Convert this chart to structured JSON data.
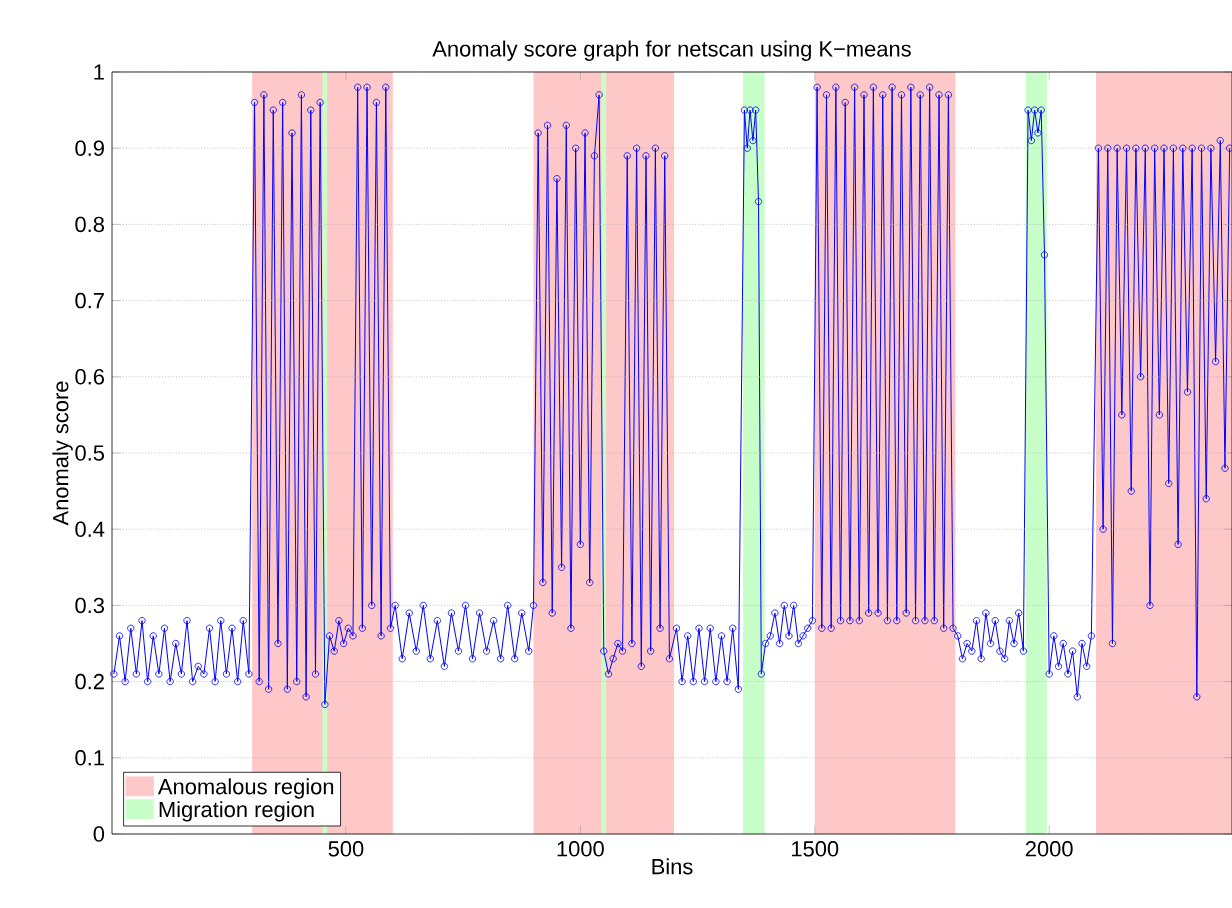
{
  "chart_data": {
    "type": "line",
    "title": "Anomaly score graph for netscan using K−means",
    "xlabel": "Bins",
    "ylabel": "Anomaly score",
    "xlim": [
      1,
      2390
    ],
    "xticks": [
      500,
      1000,
      1500,
      2000
    ],
    "ylim": [
      0,
      1
    ],
    "yticks": [
      0,
      0.1,
      0.2,
      0.3,
      0.4,
      0.5,
      0.6,
      0.7,
      0.8,
      0.9,
      1
    ],
    "grid": "y",
    "legend": "bottom left",
    "marker": "circle",
    "line_style": "solid",
    "bands": [
      {
        "axis": "x",
        "from": 300,
        "to": 600,
        "label": "Anomalous region",
        "color": "#ffc8c8"
      },
      {
        "axis": "x",
        "from": 900,
        "to": 1200,
        "color": "#ffc8c8"
      },
      {
        "axis": "x",
        "from": 1500,
        "to": 1800,
        "color": "#ffc8c8"
      },
      {
        "axis": "x",
        "from": 2100,
        "to": 2390,
        "color": "#ffc8c8"
      },
      {
        "axis": "x",
        "from": 450,
        "to": 460,
        "label": "Migration region",
        "color": "#c8ffc8"
      },
      {
        "axis": "x",
        "from": 1045,
        "to": 1055,
        "color": "#c8ffc8"
      },
      {
        "axis": "x",
        "from": 1347,
        "to": 1393,
        "color": "#c8ffc8"
      },
      {
        "axis": "x",
        "from": 1950,
        "to": 1995,
        "color": "#c8ffc8"
      }
    ],
    "series": [
      {
        "color": "#0000ff",
        "x": [
          5,
          17,
          29,
          41,
          53,
          65,
          77,
          89,
          101,
          113,
          125,
          137,
          149,
          161,
          173,
          185,
          197,
          209,
          221,
          233,
          245,
          257,
          269,
          281,
          293,
          305,
          315,
          325,
          335,
          345,
          355,
          365,
          375,
          385,
          395,
          405,
          415,
          425,
          435,
          445,
          455,
          465,
          475,
          485,
          495,
          505,
          515,
          525,
          535,
          545,
          555,
          565,
          575,
          585,
          595,
          605,
          620,
          635,
          650,
          665,
          680,
          695,
          710,
          725,
          740,
          755,
          770,
          785,
          800,
          815,
          830,
          845,
          860,
          875,
          890,
          900,
          910,
          920,
          930,
          940,
          950,
          960,
          970,
          980,
          990,
          1000,
          1010,
          1020,
          1030,
          1040,
          1050,
          1060,
          1070,
          1080,
          1090,
          1100,
          1110,
          1120,
          1130,
          1140,
          1150,
          1160,
          1170,
          1180,
          1190,
          1205,
          1217,
          1229,
          1241,
          1253,
          1265,
          1277,
          1289,
          1301,
          1313,
          1325,
          1337,
          1350,
          1356,
          1362,
          1368,
          1374,
          1380,
          1386,
          1395,
          1405,
          1415,
          1425,
          1435,
          1445,
          1455,
          1465,
          1475,
          1485,
          1495,
          1505,
          1515,
          1525,
          1535,
          1545,
          1555,
          1565,
          1575,
          1585,
          1595,
          1605,
          1615,
          1625,
          1635,
          1645,
          1655,
          1665,
          1675,
          1685,
          1695,
          1705,
          1715,
          1725,
          1735,
          1745,
          1755,
          1765,
          1775,
          1785,
          1795,
          1805,
          1815,
          1825,
          1835,
          1845,
          1855,
          1865,
          1875,
          1885,
          1895,
          1905,
          1915,
          1925,
          1935,
          1945,
          1955,
          1962,
          1969,
          1976,
          1983,
          1990,
          2000,
          2010,
          2020,
          2030,
          2040,
          2050,
          2060,
          2070,
          2080,
          2090,
          2105,
          2115,
          2125,
          2135,
          2145,
          2155,
          2165,
          2175,
          2185,
          2195,
          2205,
          2215,
          2225,
          2235,
          2245,
          2255,
          2265,
          2275,
          2285,
          2295,
          2305,
          2315,
          2325,
          2335,
          2345,
          2355,
          2365,
          2375,
          2385
        ],
        "values": [
          0.21,
          0.26,
          0.2,
          0.27,
          0.21,
          0.28,
          0.2,
          0.26,
          0.21,
          0.27,
          0.2,
          0.25,
          0.21,
          0.28,
          0.2,
          0.22,
          0.21,
          0.27,
          0.2,
          0.28,
          0.21,
          0.27,
          0.2,
          0.28,
          0.21,
          0.96,
          0.2,
          0.97,
          0.19,
          0.95,
          0.25,
          0.96,
          0.19,
          0.92,
          0.2,
          0.97,
          0.18,
          0.95,
          0.21,
          0.96,
          0.17,
          0.26,
          0.24,
          0.28,
          0.25,
          0.27,
          0.26,
          0.98,
          0.27,
          0.98,
          0.3,
          0.96,
          0.26,
          0.98,
          0.27,
          0.3,
          0.23,
          0.29,
          0.24,
          0.3,
          0.23,
          0.28,
          0.22,
          0.29,
          0.24,
          0.3,
          0.23,
          0.29,
          0.24,
          0.28,
          0.23,
          0.3,
          0.23,
          0.29,
          0.24,
          0.3,
          0.92,
          0.33,
          0.93,
          0.29,
          0.86,
          0.35,
          0.93,
          0.27,
          0.9,
          0.38,
          0.92,
          0.33,
          0.89,
          0.97,
          0.24,
          0.21,
          0.23,
          0.25,
          0.24,
          0.89,
          0.25,
          0.9,
          0.22,
          0.89,
          0.24,
          0.9,
          0.27,
          0.89,
          0.23,
          0.27,
          0.2,
          0.26,
          0.2,
          0.27,
          0.2,
          0.27,
          0.2,
          0.26,
          0.2,
          0.27,
          0.19,
          0.95,
          0.9,
          0.95,
          0.91,
          0.95,
          0.83,
          0.21,
          0.25,
          0.26,
          0.29,
          0.25,
          0.3,
          0.26,
          0.3,
          0.25,
          0.26,
          0.27,
          0.28,
          0.98,
          0.27,
          0.97,
          0.27,
          0.98,
          0.28,
          0.96,
          0.28,
          0.98,
          0.28,
          0.97,
          0.29,
          0.98,
          0.29,
          0.97,
          0.28,
          0.98,
          0.28,
          0.97,
          0.29,
          0.98,
          0.28,
          0.97,
          0.28,
          0.98,
          0.28,
          0.97,
          0.27,
          0.97,
          0.27,
          0.26,
          0.23,
          0.25,
          0.24,
          0.28,
          0.23,
          0.29,
          0.25,
          0.28,
          0.24,
          0.23,
          0.28,
          0.25,
          0.29,
          0.24,
          0.95,
          0.91,
          0.95,
          0.92,
          0.95,
          0.76,
          0.21,
          0.26,
          0.22,
          0.25,
          0.21,
          0.24,
          0.18,
          0.25,
          0.22,
          0.26,
          0.9,
          0.4,
          0.9,
          0.25,
          0.9,
          0.55,
          0.9,
          0.45,
          0.9,
          0.6,
          0.9,
          0.3,
          0.9,
          0.55,
          0.9,
          0.46,
          0.9,
          0.38,
          0.9,
          0.58,
          0.9,
          0.18,
          0.9,
          0.44,
          0.9,
          0.62,
          0.91,
          0.48,
          0.9
        ]
      }
    ]
  }
}
